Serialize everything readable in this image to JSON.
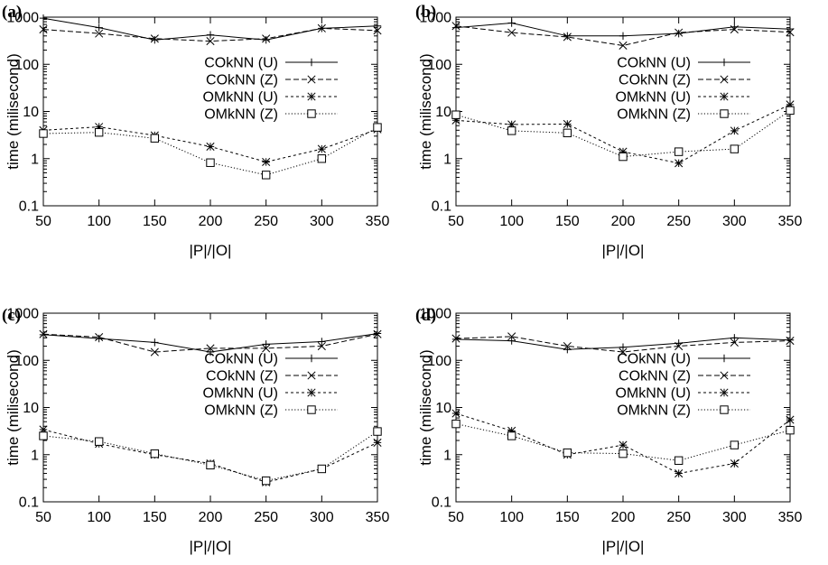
{
  "chart_data": [
    {
      "panel_label": "(a)",
      "type": "line",
      "xlabel": "|P|/|O|",
      "ylabel": "time (milisecond)",
      "yscale": "log",
      "ylim": [
        0.1,
        1000
      ],
      "xlim": [
        50,
        350
      ],
      "yticks": [
        "0.1",
        "1",
        "10",
        "100",
        "1000"
      ],
      "xticks": [
        "50",
        "100",
        "150",
        "200",
        "250",
        "300",
        "350"
      ],
      "x": [
        50,
        100,
        150,
        200,
        250,
        300,
        350
      ],
      "legend_position": "top-right",
      "grid": false,
      "series": [
        {
          "name": "COkNN (U)",
          "values": [
            950,
            600,
            330,
            420,
            330,
            580,
            650
          ]
        },
        {
          "name": "COkNN (Z)",
          "values": [
            550,
            450,
            350,
            310,
            350,
            580,
            520
          ]
        },
        {
          "name": "OMkNN (U)",
          "values": [
            4.0,
            4.7,
            3.1,
            1.8,
            0.85,
            1.6,
            4.2
          ]
        },
        {
          "name": "OMkNN (Z)",
          "values": [
            3.4,
            3.6,
            2.7,
            0.82,
            0.45,
            1.0,
            4.6
          ]
        }
      ]
    },
    {
      "panel_label": "(b)",
      "type": "line",
      "xlabel": "|P|/|O|",
      "ylabel": "time (milisecond)",
      "yscale": "log",
      "ylim": [
        0.1,
        1000
      ],
      "xlim": [
        50,
        350
      ],
      "yticks": [
        "0.1",
        "1",
        "10",
        "100",
        "1000"
      ],
      "xticks": [
        "50",
        "100",
        "150",
        "200",
        "250",
        "300",
        "350"
      ],
      "x": [
        50,
        100,
        150,
        200,
        250,
        300,
        350
      ],
      "legend_position": "top-right",
      "grid": false,
      "series": [
        {
          "name": "COkNN (U)",
          "values": [
            600,
            750,
            400,
            400,
            450,
            620,
            560
          ]
        },
        {
          "name": "COkNN (Z)",
          "values": [
            650,
            470,
            380,
            250,
            470,
            550,
            480
          ]
        },
        {
          "name": "OMkNN (U)",
          "values": [
            6.5,
            5.3,
            5.4,
            1.4,
            0.8,
            3.9,
            14
          ]
        },
        {
          "name": "OMkNN (Z)",
          "values": [
            8.5,
            3.9,
            3.5,
            1.1,
            1.4,
            1.6,
            10.5
          ]
        }
      ]
    },
    {
      "panel_label": "(c)",
      "type": "line",
      "xlabel": "|P|/|O|",
      "ylabel": "time (milisecond)",
      "yscale": "log",
      "ylim": [
        0.1,
        1000
      ],
      "xlim": [
        50,
        350
      ],
      "yticks": [
        "0.1",
        "1",
        "10",
        "100",
        "1000"
      ],
      "xticks": [
        "50",
        "100",
        "150",
        "200",
        "250",
        "300",
        "350"
      ],
      "x": [
        50,
        100,
        150,
        200,
        250,
        300,
        350
      ],
      "legend_position": "right",
      "grid": false,
      "series": [
        {
          "name": "COkNN (U)",
          "values": [
            350,
            290,
            240,
            150,
            220,
            250,
            370
          ]
        },
        {
          "name": "COkNN (Z)",
          "values": [
            360,
            310,
            150,
            180,
            180,
            200,
            360
          ]
        },
        {
          "name": "OMkNN (U)",
          "values": [
            3.4,
            1.7,
            1.0,
            0.65,
            0.26,
            0.5,
            1.8
          ]
        },
        {
          "name": "OMkNN (Z)",
          "values": [
            2.5,
            1.9,
            1.05,
            0.6,
            0.28,
            0.5,
            3.1
          ]
        }
      ]
    },
    {
      "panel_label": "(d)",
      "type": "line",
      "xlabel": "|P|/|O|",
      "ylabel": "time (milisecond)",
      "yscale": "log",
      "ylim": [
        0.1,
        1000
      ],
      "xlim": [
        50,
        350
      ],
      "yticks": [
        "0.1",
        "1",
        "10",
        "100",
        "1000"
      ],
      "xticks": [
        "50",
        "100",
        "150",
        "200",
        "250",
        "300",
        "350"
      ],
      "x": [
        50,
        100,
        150,
        200,
        250,
        300,
        350
      ],
      "legend_position": "right",
      "grid": false,
      "series": [
        {
          "name": "COkNN (U)",
          "values": [
            280,
            260,
            170,
            190,
            230,
            300,
            270
          ]
        },
        {
          "name": "COkNN (Z)",
          "values": [
            290,
            320,
            200,
            150,
            200,
            240,
            260
          ]
        },
        {
          "name": "OMkNN (U)",
          "values": [
            7.5,
            3.2,
            1.0,
            1.6,
            0.4,
            0.65,
            5.5
          ]
        },
        {
          "name": "OMkNN (Z)",
          "values": [
            4.5,
            2.5,
            1.1,
            1.05,
            0.75,
            1.6,
            3.3
          ]
        }
      ]
    }
  ]
}
